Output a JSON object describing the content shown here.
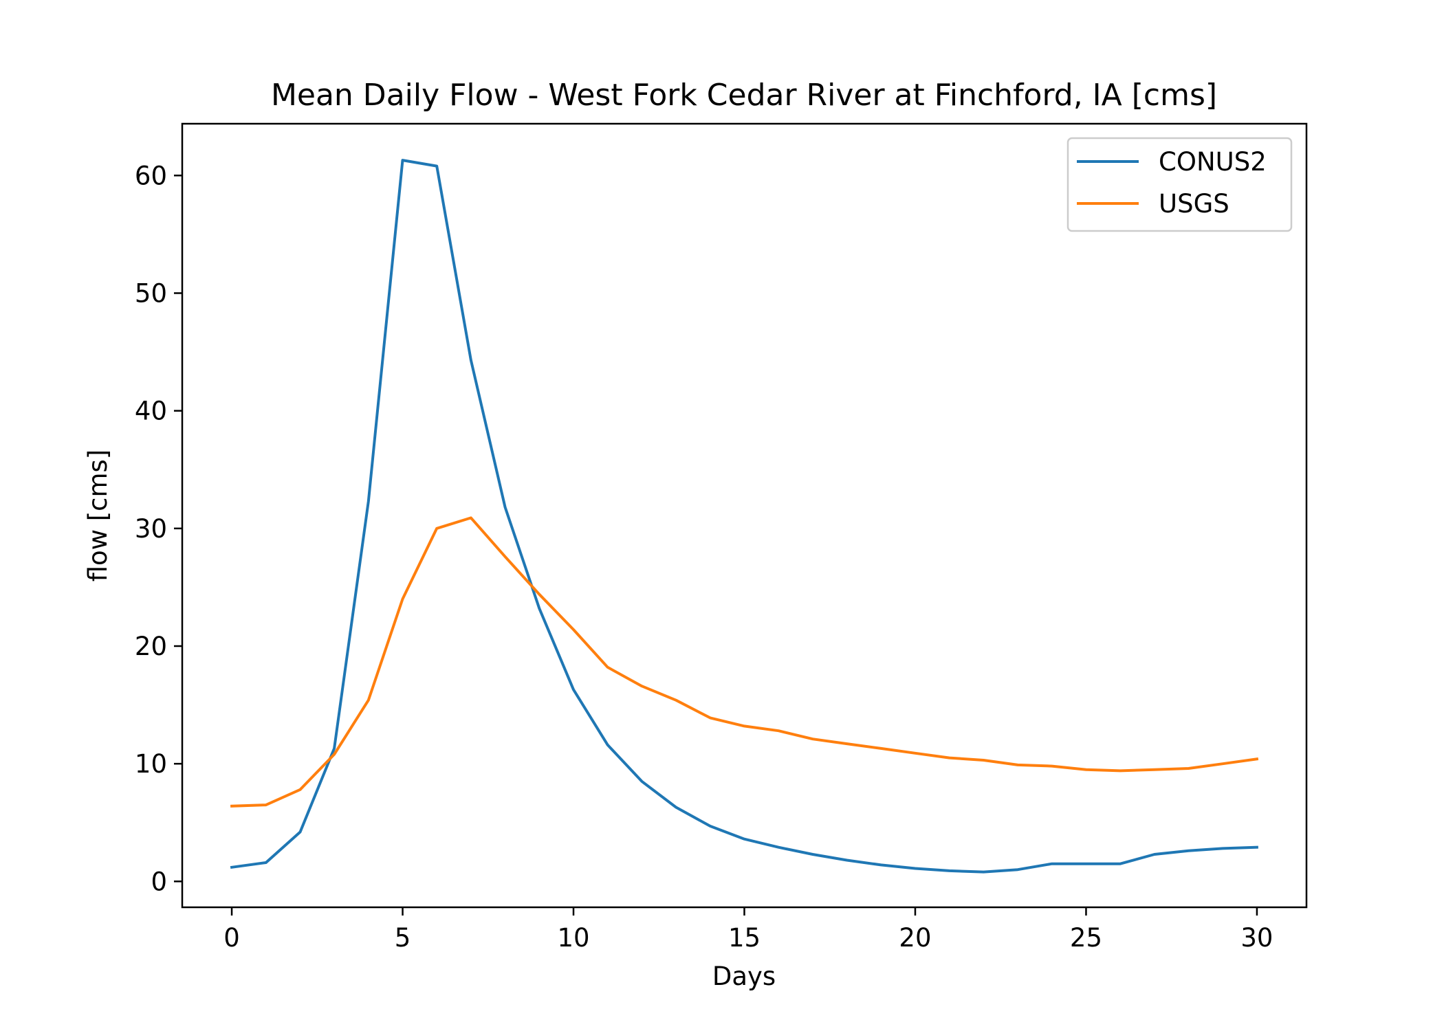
{
  "chart_data": {
    "type": "line",
    "title": "Mean Daily Flow - West Fork Cedar River at Finchford, IA [cms]",
    "xlabel": "Days",
    "ylabel": "flow [cms]",
    "xlim": [
      -1.45,
      31.45
    ],
    "ylim": [
      -2.2,
      64.4
    ],
    "xticks": [
      0,
      5,
      10,
      15,
      20,
      25,
      30
    ],
    "yticks": [
      0,
      10,
      20,
      30,
      40,
      50,
      60
    ],
    "grid": false,
    "legend_position": "top-right",
    "x": [
      0,
      1,
      2,
      3,
      4,
      5,
      6,
      7,
      8,
      9,
      10,
      11,
      12,
      13,
      14,
      15,
      16,
      17,
      18,
      19,
      20,
      21,
      22,
      23,
      24,
      25,
      26,
      27,
      28,
      29,
      30
    ],
    "series": [
      {
        "name": "CONUS2",
        "color": "#1f77b4",
        "values": [
          1.2,
          1.6,
          4.2,
          11.3,
          32.3,
          61.3,
          60.8,
          44.3,
          31.8,
          23.2,
          16.3,
          11.6,
          8.5,
          6.3,
          4.7,
          3.6,
          2.9,
          2.3,
          1.8,
          1.4,
          1.1,
          0.9,
          0.8,
          1.0,
          1.5,
          1.5,
          1.5,
          2.3,
          2.6,
          2.8,
          2.9
        ]
      },
      {
        "name": "USGS",
        "color": "#ff7f0e",
        "values": [
          6.4,
          6.5,
          7.8,
          10.8,
          15.4,
          24.0,
          30.0,
          30.9,
          27.6,
          24.4,
          21.4,
          18.2,
          16.6,
          15.4,
          13.9,
          13.2,
          12.8,
          12.1,
          11.7,
          11.3,
          10.9,
          10.5,
          10.3,
          9.9,
          9.8,
          9.5,
          9.4,
          9.5,
          9.6,
          10.0,
          10.4
        ]
      }
    ]
  }
}
